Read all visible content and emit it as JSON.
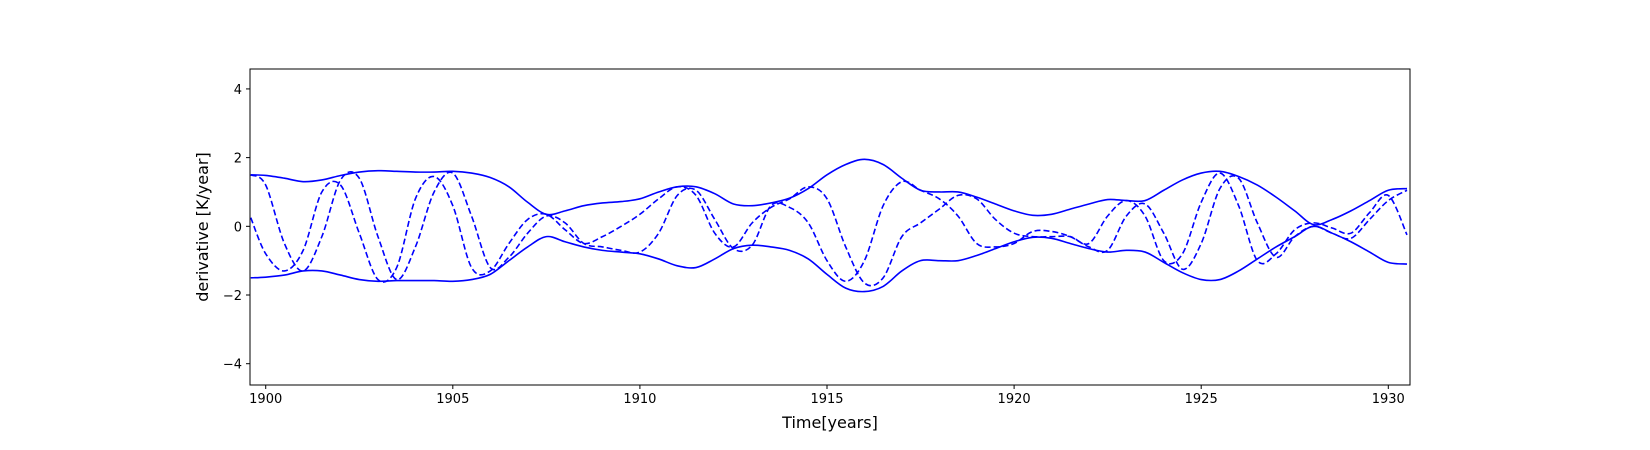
{
  "chart_data": {
    "type": "line",
    "x_label": "Time[years]",
    "y_label": "derivative [K/year]",
    "xlim": [
      1899.58,
      1930.58
    ],
    "ylim": [
      -4.62,
      4.58
    ],
    "xticks": [
      1900,
      1905,
      1910,
      1915,
      1920,
      1925,
      1930
    ],
    "yticks": [
      {
        "value": -4,
        "label": "−4"
      },
      {
        "value": -2,
        "label": "−2"
      },
      0,
      2,
      4
    ],
    "grid": false,
    "x": [
      1899.6,
      1900,
      1900.5,
      1901,
      1901.5,
      1902,
      1902.5,
      1903,
      1903.5,
      1904,
      1904.5,
      1905,
      1905.5,
      1906,
      1906.5,
      1907,
      1907.5,
      1908,
      1908.5,
      1909,
      1909.5,
      1910,
      1910.5,
      1911,
      1911.5,
      1912,
      1912.5,
      1913,
      1913.5,
      1914,
      1914.5,
      1915,
      1915.5,
      1916,
      1916.5,
      1917,
      1917.5,
      1918,
      1918.5,
      1919,
      1919.5,
      1920,
      1920.5,
      1921,
      1921.5,
      1922,
      1922.5,
      1923,
      1923.5,
      1924,
      1924.5,
      1925,
      1925.5,
      1926,
      1926.5,
      1927,
      1927.5,
      1928,
      1928.5,
      1929,
      1929.5,
      1930,
      1930.5
    ],
    "series": [
      {
        "color": "#0000ff",
        "linestyle": "solid",
        "values": [
          1.5,
          1.48,
          1.4,
          1.3,
          1.35,
          1.48,
          1.58,
          1.62,
          1.6,
          1.58,
          1.58,
          1.6,
          1.55,
          1.42,
          1.15,
          0.7,
          0.35,
          0.45,
          0.6,
          0.68,
          0.72,
          0.8,
          1.0,
          1.15,
          1.15,
          0.95,
          0.65,
          0.6,
          0.68,
          0.82,
          1.1,
          1.5,
          1.8,
          1.95,
          1.8,
          1.4,
          1.05,
          1.0,
          1.0,
          0.85,
          0.65,
          0.45,
          0.32,
          0.35,
          0.5,
          0.65,
          0.78,
          0.75,
          0.75,
          1.05,
          1.35,
          1.55,
          1.6,
          1.45,
          1.2,
          0.85,
          0.45,
          0.05,
          0.2,
          0.45,
          0.75,
          1.05,
          1.1
        ]
      },
      {
        "color": "#0000ff",
        "linestyle": "solid",
        "values": [
          -1.5,
          -1.48,
          -1.42,
          -1.3,
          -1.3,
          -1.42,
          -1.55,
          -1.6,
          -1.58,
          -1.58,
          -1.58,
          -1.6,
          -1.55,
          -1.4,
          -1.0,
          -0.6,
          -0.3,
          -0.45,
          -0.6,
          -0.7,
          -0.75,
          -0.8,
          -0.95,
          -1.15,
          -1.2,
          -0.95,
          -0.65,
          -0.55,
          -0.6,
          -0.7,
          -0.95,
          -1.4,
          -1.8,
          -1.9,
          -1.75,
          -1.3,
          -1.0,
          -1.0,
          -1.0,
          -0.85,
          -0.65,
          -0.45,
          -0.32,
          -0.35,
          -0.5,
          -0.65,
          -0.75,
          -0.7,
          -0.75,
          -1.05,
          -1.35,
          -1.55,
          -1.55,
          -1.3,
          -0.95,
          -0.6,
          -0.3,
          0.0,
          -0.2,
          -0.45,
          -0.75,
          -1.05,
          -1.1
        ]
      },
      {
        "color": "#0000ff",
        "linestyle": "dashed",
        "values": [
          0.25,
          -0.8,
          -1.3,
          -0.7,
          1.0,
          1.2,
          -0.2,
          -1.55,
          -1.2,
          0.8,
          1.45,
          0.6,
          -1.2,
          -1.3,
          -0.5,
          0.2,
          0.35,
          -0.1,
          -0.5,
          -0.3,
          0.0,
          0.35,
          0.8,
          1.15,
          0.9,
          -0.2,
          -0.6,
          0.1,
          0.55,
          0.8,
          1.15,
          0.8,
          -0.6,
          -1.65,
          -1.5,
          -0.3,
          0.1,
          0.5,
          0.9,
          0.8,
          0.2,
          -0.2,
          -0.3,
          -0.3,
          -0.3,
          -0.5,
          0.3,
          0.75,
          0.3,
          -1.0,
          -0.8,
          0.7,
          1.55,
          0.6,
          -1.0,
          -0.8,
          -0.1,
          0.1,
          -0.05,
          -0.2,
          0.4,
          0.9,
          -0.25
        ]
      },
      {
        "color": "#0000ff",
        "linestyle": "dashed",
        "values": [
          1.5,
          1.2,
          -0.5,
          -1.3,
          -0.3,
          1.35,
          1.4,
          -0.3,
          -1.55,
          -0.6,
          1.0,
          1.55,
          0.3,
          -1.2,
          -0.9,
          -0.2,
          0.3,
          0.1,
          -0.5,
          -0.6,
          -0.7,
          -0.75,
          -0.2,
          0.9,
          1.05,
          0.2,
          -0.65,
          -0.55,
          0.6,
          0.55,
          0.1,
          -1.0,
          -1.6,
          -1.0,
          0.6,
          1.3,
          1.05,
          0.8,
          0.3,
          -0.5,
          -0.6,
          -0.5,
          -0.15,
          -0.15,
          -0.3,
          -0.6,
          -0.7,
          0.3,
          0.65,
          -0.2,
          -1.25,
          -0.5,
          1.1,
          1.4,
          0.1,
          -0.9,
          -0.3,
          0.0,
          -0.2,
          -0.35,
          0.2,
          0.75,
          1.05
        ]
      }
    ]
  }
}
